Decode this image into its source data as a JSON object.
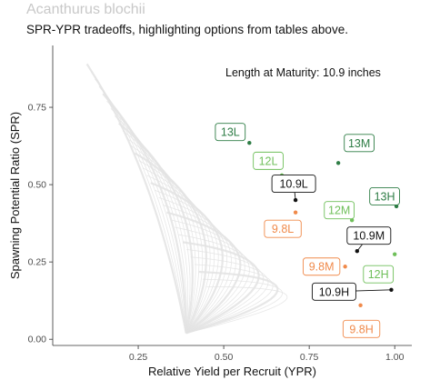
{
  "chart_data": {
    "type": "scatter",
    "title": "Acanthurus blochii",
    "subtitle": "SPR-YPR tradeoffs, highlighting options from tables above.",
    "xlabel": "Relative Yield per Recruit (YPR)",
    "ylabel": "Spawning Potential Ratio (SPR)",
    "annotation": "Length at Maturity: 10.9 inches",
    "xlim": [
      0.0,
      1.05
    ],
    "ylim": [
      -0.02,
      0.95
    ],
    "x_ticks": [
      0.25,
      0.5,
      0.75,
      1.0
    ],
    "x_tick_labels": [
      "0.25",
      "0.50",
      "0.75",
      "1.00"
    ],
    "y_ticks": [
      0.0,
      0.25,
      0.5,
      0.75
    ],
    "y_tick_labels": [
      "0.00",
      "0.25",
      "0.50",
      "0.75"
    ],
    "grid": false,
    "colors": {
      "13": "#2e7d45",
      "12": "#6fbf5a",
      "10.9": "#111111",
      "9.8": "#f08a4b",
      "background_curves": "#e3e3e3"
    },
    "points": [
      {
        "label": "13L",
        "x": 0.575,
        "y": 0.635,
        "group": "13"
      },
      {
        "label": "12L",
        "x": 0.67,
        "y": 0.53,
        "group": "12"
      },
      {
        "label": "13M",
        "x": 0.835,
        "y": 0.57,
        "group": "13"
      },
      {
        "label": "10.9L",
        "x": 0.71,
        "y": 0.45,
        "group": "10.9"
      },
      {
        "label": "9.8L",
        "x": 0.71,
        "y": 0.41,
        "group": "9.8"
      },
      {
        "label": "12M",
        "x": 0.875,
        "y": 0.385,
        "group": "12"
      },
      {
        "label": "13H",
        "x": 1.005,
        "y": 0.43,
        "group": "13"
      },
      {
        "label": "10.9M",
        "x": 0.89,
        "y": 0.285,
        "group": "10.9"
      },
      {
        "label": "9.8M",
        "x": 0.855,
        "y": 0.235,
        "group": "9.8"
      },
      {
        "label": "12H",
        "x": 1.0,
        "y": 0.275,
        "group": "12"
      },
      {
        "label": "10.9H",
        "x": 0.99,
        "y": 0.16,
        "group": "10.9"
      },
      {
        "label": "9.8H",
        "x": 0.9,
        "y": 0.11,
        "group": "9.8"
      }
    ]
  }
}
